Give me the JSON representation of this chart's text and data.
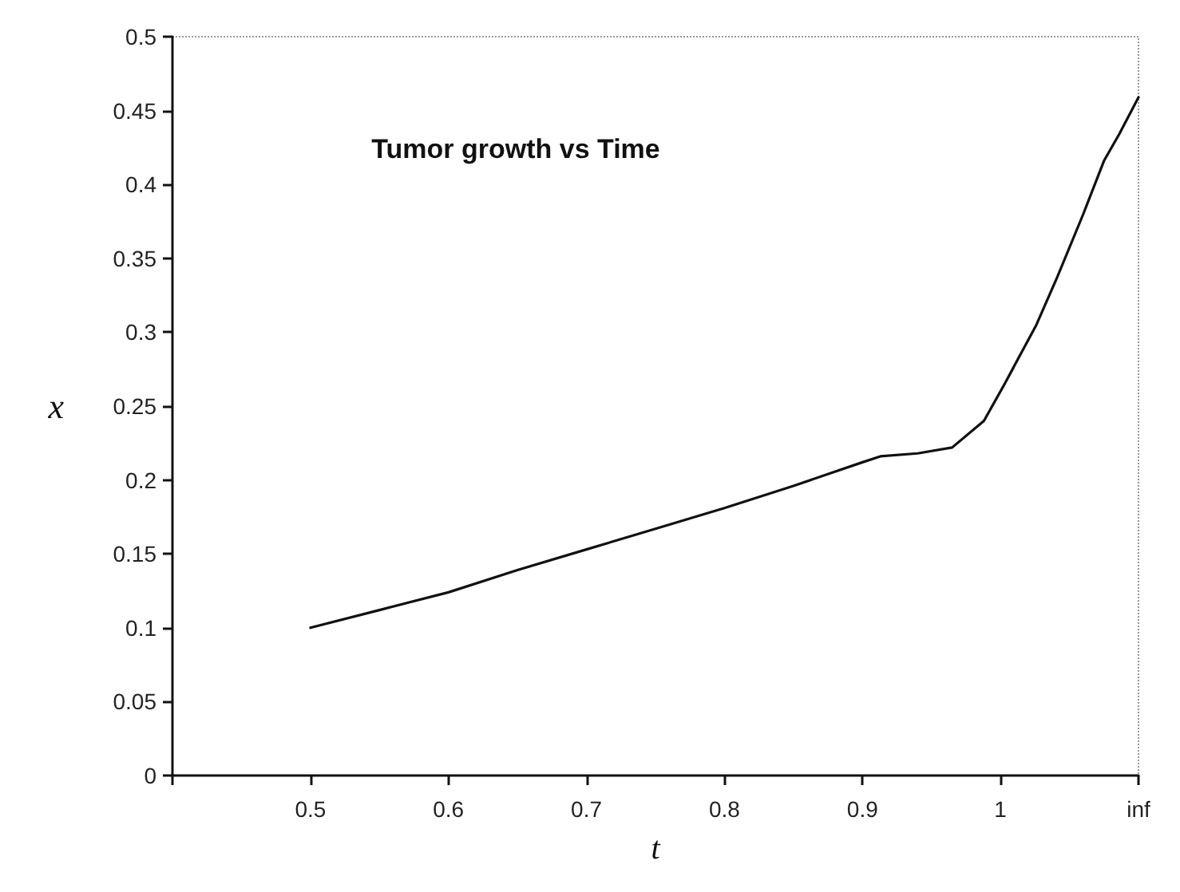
{
  "chart_data": {
    "type": "line",
    "title": "Tumor growth vs Time",
    "xlabel": "t",
    "ylabel": "x",
    "x": [
      0.5,
      0.55,
      0.6,
      0.65,
      0.7,
      0.75,
      0.8,
      0.85,
      0.9,
      0.913,
      0.94,
      0.965,
      0.988,
      1.003,
      1.026,
      1.041,
      1.06,
      1.075,
      1.086,
      1.1
    ],
    "series": [
      {
        "color": "#111111",
        "values": [
          0.1,
          0.112,
          0.124,
          0.139,
          0.153,
          0.167,
          0.181,
          0.196,
          0.212,
          0.216,
          0.218,
          0.222,
          0.24,
          0.265,
          0.305,
          0.337,
          0.38,
          0.416,
          0.434,
          0.459
        ]
      }
    ],
    "xlim": [
      0.4,
      1.1
    ],
    "xticks": [
      {
        "value": 0.4,
        "label": null
      },
      0.5,
      0.6,
      0.7,
      0.8,
      0.9,
      1,
      {
        "value": 1.1,
        "label": "inf"
      }
    ],
    "ylim": [
      0,
      0.5
    ],
    "yticks": [
      0,
      0.05,
      0.1,
      0.15,
      0.2,
      0.25,
      0.3,
      0.35,
      0.4,
      0.45,
      0.5
    ],
    "grid": false,
    "marker": "none",
    "line_style": "solid"
  }
}
